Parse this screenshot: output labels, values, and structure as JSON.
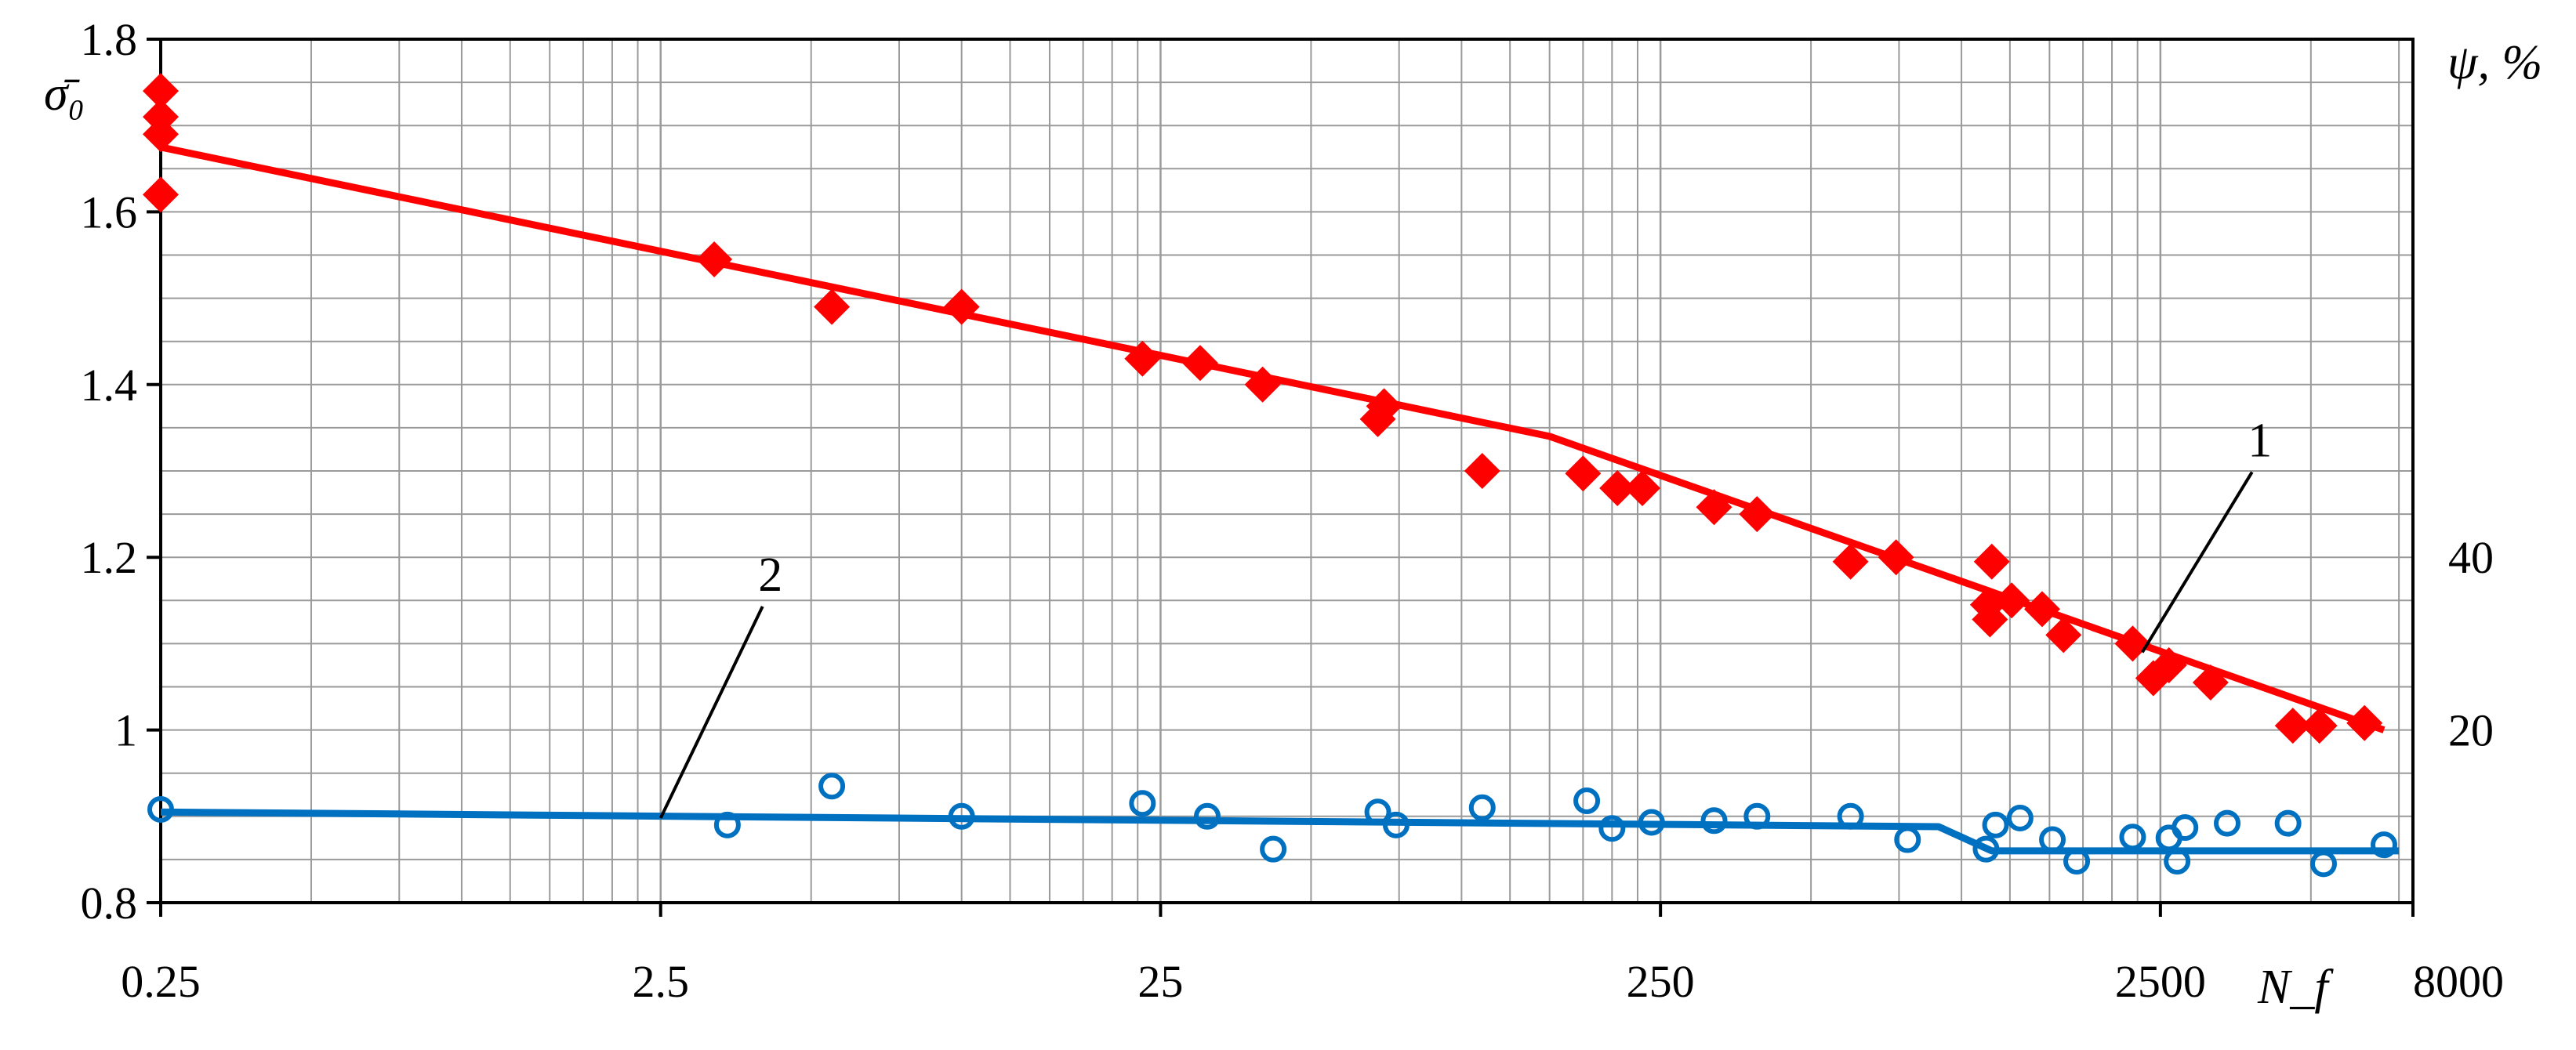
{
  "chart_data": {
    "type": "scatter",
    "x_scale": "log",
    "xlim": [
      0.25,
      8000
    ],
    "ylim": [
      0.8,
      1.8
    ],
    "y2_ticks": [
      "20",
      "40"
    ],
    "grid": true,
    "x_ticks": [
      "0.25",
      "2.5",
      "25",
      "250",
      "2500",
      "8000"
    ],
    "y_ticks": [
      "0.8",
      "1",
      "1.2",
      "1.4",
      "1.6",
      "1.8"
    ],
    "xlabel": "N_f",
    "ylabel": "σ̄₀",
    "y2label": "ψ, %",
    "series": [
      {
        "name": "1",
        "color": "#ff0000",
        "marker": "diamond",
        "points": [
          [
            0.25,
            1.74
          ],
          [
            0.25,
            1.71
          ],
          [
            0.25,
            1.69
          ],
          [
            0.25,
            1.62
          ],
          [
            3.2,
            1.545
          ],
          [
            5.5,
            1.49
          ],
          [
            10,
            1.49
          ],
          [
            23,
            1.43
          ],
          [
            30,
            1.425
          ],
          [
            40,
            1.4
          ],
          [
            68,
            1.36
          ],
          [
            70,
            1.375
          ],
          [
            110,
            1.3
          ],
          [
            175,
            1.297
          ],
          [
            205,
            1.28
          ],
          [
            230,
            1.28
          ],
          [
            320,
            1.258
          ],
          [
            390,
            1.25
          ],
          [
            600,
            1.195
          ],
          [
            740,
            1.2
          ],
          [
            1130,
            1.145
          ],
          [
            1140,
            1.128
          ],
          [
            1150,
            1.195
          ],
          [
            1260,
            1.15
          ],
          [
            1450,
            1.14
          ],
          [
            1600,
            1.11
          ],
          [
            2200,
            1.1
          ],
          [
            2420,
            1.06
          ],
          [
            2600,
            1.075
          ],
          [
            3150,
            1.055
          ],
          [
            4600,
            1.005
          ],
          [
            5200,
            1.005
          ],
          [
            6400,
            1.008
          ]
        ],
        "fit_line": [
          [
            0.25,
            1.675
          ],
          [
            150,
            1.34
          ],
          [
            7000,
            1.0
          ]
        ]
      },
      {
        "name": "2",
        "color": "#0070c0",
        "marker": "circle",
        "points": [
          [
            0.25,
            0.908
          ],
          [
            3.4,
            0.89
          ],
          [
            5.5,
            0.935
          ],
          [
            10,
            0.9
          ],
          [
            23,
            0.915
          ],
          [
            31,
            0.9
          ],
          [
            42,
            0.862
          ],
          [
            68,
            0.905
          ],
          [
            74,
            0.89
          ],
          [
            110,
            0.91
          ],
          [
            178,
            0.918
          ],
          [
            200,
            0.886
          ],
          [
            240,
            0.893
          ],
          [
            320,
            0.895
          ],
          [
            390,
            0.9
          ],
          [
            600,
            0.9
          ],
          [
            780,
            0.873
          ],
          [
            1120,
            0.862
          ],
          [
            1170,
            0.89
          ],
          [
            1310,
            0.898
          ],
          [
            1520,
            0.873
          ],
          [
            1700,
            0.848
          ],
          [
            2200,
            0.876
          ],
          [
            2600,
            0.875
          ],
          [
            2700,
            0.848
          ],
          [
            2800,
            0.887
          ],
          [
            3400,
            0.892
          ],
          [
            4500,
            0.892
          ],
          [
            5300,
            0.845
          ],
          [
            7000,
            0.867
          ]
        ],
        "fit_line": [
          [
            0.25,
            0.905
          ],
          [
            900,
            0.888
          ],
          [
            1150,
            0.86
          ],
          [
            7500,
            0.86
          ]
        ]
      }
    ],
    "annotations": [
      {
        "text": "1",
        "anchor_x": 2300,
        "anchor_y": 1.09
      },
      {
        "text": "2",
        "anchor_x": 2.5,
        "anchor_y": 0.898
      }
    ]
  }
}
